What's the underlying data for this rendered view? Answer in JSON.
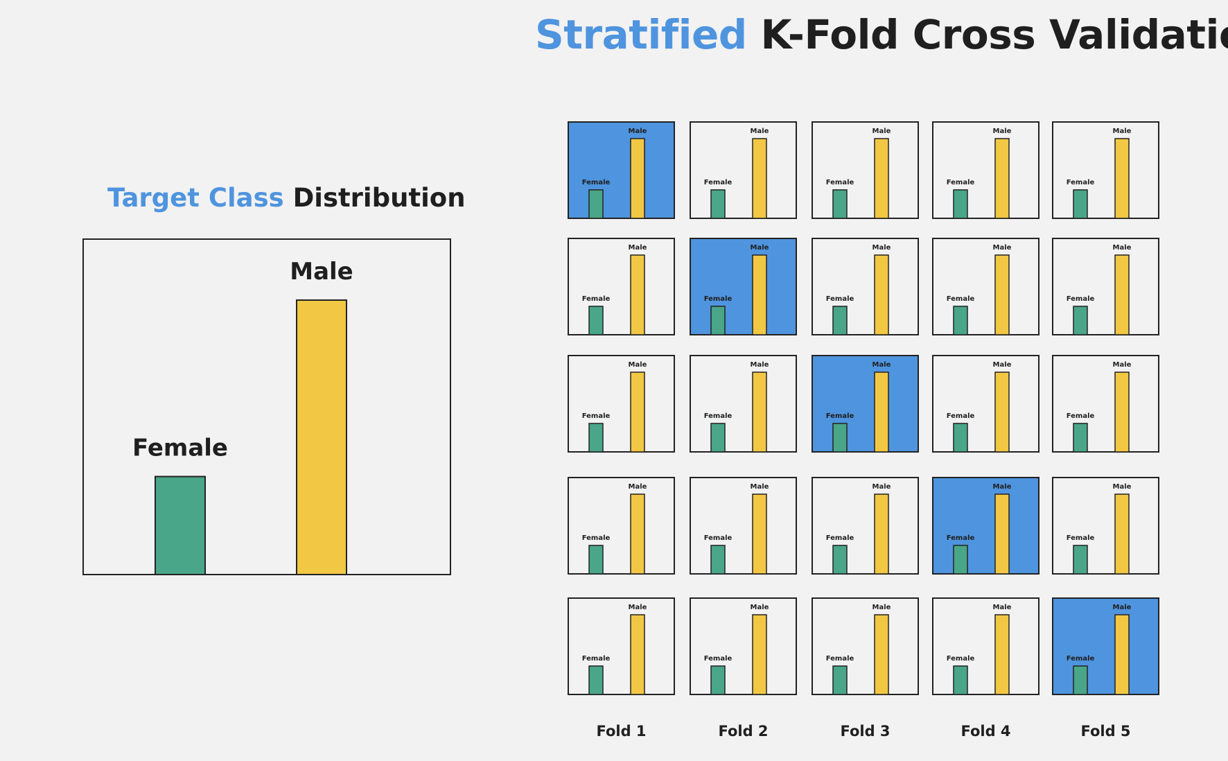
{
  "title": {
    "accent": "Stratified",
    "rest": "K-Fold Cross Validation"
  },
  "distribution": {
    "title_accent": "Target Class",
    "title_rest": "Distribution"
  },
  "chart_data": {
    "type": "bar",
    "categories": [
      "Female",
      "Male"
    ],
    "values": [
      1,
      2.8
    ],
    "colors": [
      "#4aa688",
      "#f2c744"
    ]
  },
  "folds": {
    "labels": [
      "Fold 1",
      "Fold 2",
      "Fold 3",
      "Fold 4",
      "Fold 5"
    ],
    "rows": 5,
    "test_index_per_row": [
      0,
      1,
      2,
      3,
      4
    ],
    "test_color": "#4f94de",
    "train_color": "#f2f2f2"
  },
  "colors": {
    "accent": "#4f94de",
    "female": "#4aa688",
    "male": "#f2c744",
    "text": "#1f1f1f",
    "background": "#f2f2f2"
  }
}
